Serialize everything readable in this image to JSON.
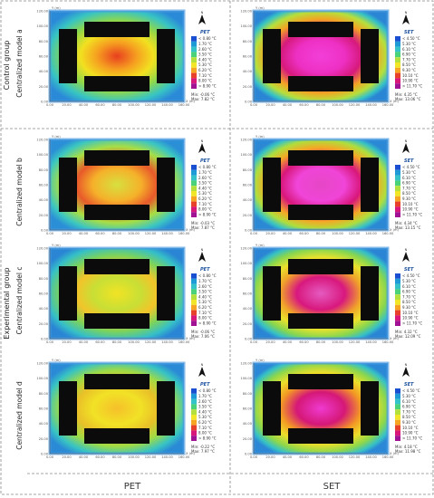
{
  "group_labels": {
    "control": "Control group",
    "experimental": "Experimental group"
  },
  "column_labels": {
    "pet": "PET",
    "set": "SET"
  },
  "rows": [
    {
      "label": "Centralized model a",
      "pet": {
        "min": "Min: -0.06 °C",
        "max": "Max: 7.82 °C"
      },
      "set": {
        "min": "Min: 4.35 °C",
        "max": "Max: 13.06 °C"
      }
    },
    {
      "label": "Centralized model b",
      "pet": {
        "min": "Min: -0.03 °C",
        "max": "Max: 7.87 °C"
      },
      "set": {
        "min": "Min: 4.34 °C",
        "max": "Max: 13.15 °C"
      }
    },
    {
      "label": "Centralized model c",
      "pet": {
        "min": "Min: -0.06 °C",
        "max": "Max: 7.06 °C"
      },
      "set": {
        "min": "Min: 4.32 °C",
        "max": "Max: 12.09 °C"
      }
    },
    {
      "label": "Centralized model d",
      "pet": {
        "min": "Min: -0.22 °C",
        "max": "Max: 7.97 °C"
      },
      "set": {
        "min": "Min: 4.18 °C",
        "max": "Max: 11.98 °C"
      }
    }
  ],
  "legends": {
    "pet": {
      "title": "PET",
      "items": [
        "< 0.80 °C",
        "1.70 °C",
        "2.60 °C",
        "3.50 °C",
        "4.40 °C",
        "5.30 °C",
        "6.20 °C",
        "7.10 °C",
        "8.00 °C",
        "> 8.90 °C"
      ]
    },
    "set": {
      "title": "SET",
      "items": [
        "< 4.50 °C",
        "5.30 °C",
        "6.10 °C",
        "6.90 °C",
        "7.70 °C",
        "8.50 °C",
        "9.30 °C",
        "10.10 °C",
        "10.90 °C",
        "> 11.70 °C"
      ]
    }
  },
  "axes": {
    "x_ticks": [
      "0.00",
      "20.00",
      "40.00",
      "60.00",
      "80.00",
      "100.00",
      "120.00",
      "140.00",
      "160.00"
    ],
    "y_ticks": [
      "120.00",
      "100.00",
      "80.00",
      "60.00",
      "40.00",
      "20.00",
      "0.00"
    ],
    "x_unit": "X (m)",
    "y_unit": "Y (m)"
  },
  "legend_colors": [
    "#1a4fd1",
    "#1e9bd7",
    "#33c3c9",
    "#49d27a",
    "#b3e03c",
    "#f2e628",
    "#f6a623",
    "#e8412b",
    "#d9167a",
    "#a01293"
  ],
  "compass_icon": "north-arrow-icon"
}
